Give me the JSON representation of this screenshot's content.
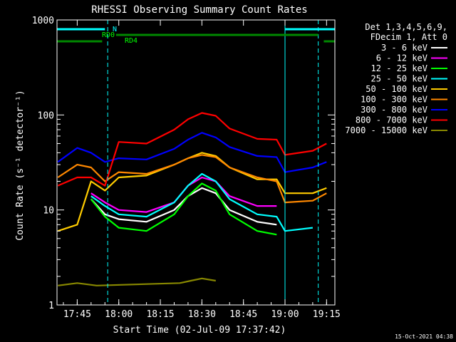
{
  "chart_data": {
    "type": "line",
    "title": "RHESSI Observing Summary Count Rates",
    "xlabel": "Start Time (02-Jul-09 17:37:42)",
    "ylabel": "Count Rate (s⁻¹ detector⁻¹)",
    "yscale": "log",
    "ylim": [
      1,
      1000
    ],
    "x_range": [
      "17:37:42",
      "19:18:00"
    ],
    "x_tick_labels": [
      "17:45",
      "18:00",
      "18:15",
      "18:30",
      "18:45",
      "19:00",
      "19:15"
    ],
    "y_tick_labels": [
      "1",
      "10",
      "100",
      "1000"
    ],
    "grid": false,
    "legend_position": "right",
    "legend_header": [
      "Det 1,3,4,5,6,9,",
      "FDecim 1, Att 0"
    ],
    "footer_date": "15-Oct-2021 04:38",
    "markers": {
      "night_times": [
        "17:56",
        "19:12"
      ],
      "N_label": "N",
      "RD0_label": "RD0",
      "RD4_label": "RD4"
    },
    "series": [
      {
        "name": "3 - 6 keV",
        "color": "#ffffff",
        "points": [
          [
            "17:50",
            13
          ],
          [
            "17:55",
            9
          ],
          [
            "18:00",
            8
          ],
          [
            "18:10",
            7.5
          ],
          [
            "18:20",
            10
          ],
          [
            "18:25",
            14
          ],
          [
            "18:30",
            17
          ],
          [
            "18:35",
            15
          ],
          [
            "18:40",
            10
          ],
          [
            "18:50",
            7.5
          ],
          [
            "18:57",
            7
          ]
        ]
      },
      {
        "name": "6 - 12 keV",
        "color": "#ff00ff",
        "points": [
          [
            "17:50",
            15
          ],
          [
            "17:55",
            12
          ],
          [
            "18:00",
            10
          ],
          [
            "18:10",
            9.5
          ],
          [
            "18:20",
            12
          ],
          [
            "18:25",
            18
          ],
          [
            "18:30",
            22
          ],
          [
            "18:35",
            20
          ],
          [
            "18:40",
            14
          ],
          [
            "18:50",
            11
          ],
          [
            "18:57",
            11
          ]
        ]
      },
      {
        "name": "12 - 25 keV",
        "color": "#00ff00",
        "points": [
          [
            "17:50",
            13
          ],
          [
            "17:55",
            8.5
          ],
          [
            "18:00",
            6.5
          ],
          [
            "18:10",
            6
          ],
          [
            "18:20",
            9
          ],
          [
            "18:25",
            14
          ],
          [
            "18:30",
            19
          ],
          [
            "18:35",
            16
          ],
          [
            "18:40",
            9
          ],
          [
            "18:50",
            6
          ],
          [
            "18:57",
            5.5
          ]
        ]
      },
      {
        "name": "25 - 50 keV",
        "color": "#00ffff",
        "points": [
          [
            "17:50",
            14
          ],
          [
            "17:55",
            11
          ],
          [
            "18:00",
            9
          ],
          [
            "18:10",
            8.5
          ],
          [
            "18:20",
            12
          ],
          [
            "18:25",
            18
          ],
          [
            "18:30",
            24
          ],
          [
            "18:35",
            20
          ],
          [
            "18:40",
            13
          ],
          [
            "18:50",
            9
          ],
          [
            "18:57",
            8.5
          ],
          [
            "19:00",
            6
          ],
          [
            "19:10",
            6.5
          ]
        ]
      },
      {
        "name": "50 - 100 keV",
        "color": "#ffcc00",
        "points": [
          [
            "17:38",
            6
          ],
          [
            "17:45",
            7
          ],
          [
            "17:50",
            20
          ],
          [
            "17:55",
            16
          ],
          [
            "18:00",
            22
          ],
          [
            "18:10",
            23
          ],
          [
            "18:20",
            30
          ],
          [
            "18:25",
            35
          ],
          [
            "18:30",
            40
          ],
          [
            "18:35",
            37
          ],
          [
            "18:40",
            28
          ],
          [
            "18:50",
            21
          ],
          [
            "18:57",
            21
          ],
          [
            "19:00",
            15
          ],
          [
            "19:10",
            15
          ],
          [
            "19:15",
            17
          ]
        ]
      },
      {
        "name": "100 - 300 keV",
        "color": "#ff8800",
        "points": [
          [
            "17:38",
            22
          ],
          [
            "17:45",
            30
          ],
          [
            "17:50",
            28
          ],
          [
            "17:55",
            20
          ],
          [
            "18:00",
            25
          ],
          [
            "18:10",
            24
          ],
          [
            "18:20",
            30
          ],
          [
            "18:25",
            35
          ],
          [
            "18:30",
            38
          ],
          [
            "18:35",
            36
          ],
          [
            "18:40",
            28
          ],
          [
            "18:50",
            22
          ],
          [
            "18:57",
            20
          ],
          [
            "19:00",
            12
          ],
          [
            "19:10",
            12.5
          ],
          [
            "19:15",
            15
          ]
        ]
      },
      {
        "name": "300 - 800 keV",
        "color": "#0000ff",
        "points": [
          [
            "17:38",
            32
          ],
          [
            "17:45",
            45
          ],
          [
            "17:50",
            40
          ],
          [
            "17:55",
            32
          ],
          [
            "18:00",
            35
          ],
          [
            "18:10",
            34
          ],
          [
            "18:20",
            44
          ],
          [
            "18:25",
            55
          ],
          [
            "18:30",
            65
          ],
          [
            "18:35",
            58
          ],
          [
            "18:40",
            46
          ],
          [
            "18:50",
            37
          ],
          [
            "18:57",
            36
          ],
          [
            "19:00",
            25
          ],
          [
            "19:10",
            28
          ],
          [
            "19:15",
            32
          ]
        ]
      },
      {
        "name": "800 - 7000 keV",
        "color": "#ff0000",
        "points": [
          [
            "17:38",
            18
          ],
          [
            "17:45",
            22
          ],
          [
            "17:50",
            22
          ],
          [
            "17:55",
            18
          ],
          [
            "18:00",
            52
          ],
          [
            "18:10",
            50
          ],
          [
            "18:20",
            70
          ],
          [
            "18:25",
            90
          ],
          [
            "18:30",
            105
          ],
          [
            "18:35",
            98
          ],
          [
            "18:40",
            72
          ],
          [
            "18:50",
            56
          ],
          [
            "18:57",
            55
          ],
          [
            "19:00",
            38
          ],
          [
            "19:10",
            42
          ],
          [
            "19:15",
            50
          ]
        ]
      },
      {
        "name": "7000 - 15000 keV",
        "color": "#888800",
        "points": [
          [
            "17:38",
            1.6
          ],
          [
            "17:45",
            1.7
          ],
          [
            "17:52",
            1.6
          ],
          [
            "18:22",
            1.7
          ],
          [
            "18:26",
            1.8
          ],
          [
            "18:30",
            1.9
          ],
          [
            "18:35",
            1.8
          ]
        ]
      }
    ]
  }
}
